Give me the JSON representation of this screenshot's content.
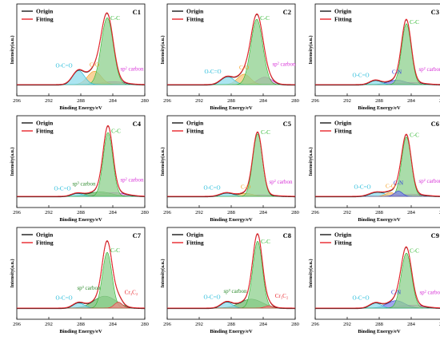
{
  "figure": {
    "xlabel": "Binding Energy/eV",
    "ylabel": "Intensity(a.u.)",
    "legend": {
      "origin": "Origin",
      "fitting": "Fitting",
      "origin_color": "#1a1a1a",
      "fitting_color": "#e8252b"
    },
    "x_ticks": [
      "296",
      "292",
      "288",
      "284",
      "280"
    ]
  },
  "chart_data": [
    {
      "type": "line",
      "id": "C1",
      "label": "C1",
      "xlim": [
        296,
        280
      ],
      "xlabel": "Binding Energy/eV",
      "ylabel": "Intensity(a.u.)",
      "components": [
        {
          "name": "C-C",
          "label": "C-C",
          "center": 284.7,
          "width": 0.75,
          "height": 0.9,
          "color": "#2bb52b",
          "fill": "#8ed08e"
        },
        {
          "name": "C-O",
          "label": "C-O",
          "center": 286.3,
          "width": 0.85,
          "height": 0.18,
          "color": "#f39c1f",
          "fill": "#f7c47a"
        },
        {
          "name": "O-C=O",
          "label": "O-C=O",
          "center": 288.3,
          "width": 0.75,
          "height": 0.19,
          "color": "#1bb8d8",
          "fill": "#8fdcec"
        },
        {
          "name": "sp2 carbon",
          "label": "sp² carbon",
          "center": 284.0,
          "width": 1.5,
          "height": 0.04,
          "color": "#d62fd6",
          "fill": "#e48ee4"
        }
      ]
    },
    {
      "type": "line",
      "id": "C2",
      "label": "C2",
      "xlim": [
        296,
        280
      ],
      "xlabel": "Binding Energy/eV",
      "ylabel": "Intensity(a.u.)",
      "components": [
        {
          "name": "C-C",
          "label": "C-C",
          "center": 284.8,
          "width": 0.75,
          "height": 0.88,
          "color": "#2bb52b",
          "fill": "#8ed08e"
        },
        {
          "name": "C-O",
          "label": "C-O",
          "center": 286.4,
          "width": 0.8,
          "height": 0.14,
          "color": "#f39c1f",
          "fill": "#f7c47a"
        },
        {
          "name": "O-C=O",
          "label": "O-C=O",
          "center": 288.5,
          "width": 0.8,
          "height": 0.11,
          "color": "#1bb8d8",
          "fill": "#8fdcec"
        },
        {
          "name": "sp2 carbon",
          "label": "sp² carbon",
          "center": 283.8,
          "width": 0.9,
          "height": 0.1,
          "color": "#d62fd6",
          "fill": "#e48ee4"
        }
      ]
    },
    {
      "type": "line",
      "id": "C3",
      "label": "C3",
      "xlim": [
        296,
        280
      ],
      "xlabel": "Binding Energy/eV",
      "ylabel": "Intensity(a.u.)",
      "components": [
        {
          "name": "C-C",
          "label": "C-C",
          "center": 284.6,
          "width": 0.6,
          "height": 0.82,
          "color": "#2bb52b",
          "fill": "#8ed08e"
        },
        {
          "name": "C-N",
          "label": "C-N",
          "center": 285.8,
          "width": 1.1,
          "height": 0.06,
          "color": "#2a35d8",
          "fill": "#7f86e8"
        },
        {
          "name": "O-C=O",
          "label": "O-C=O",
          "center": 288.5,
          "width": 0.7,
          "height": 0.06,
          "color": "#1bb8d8",
          "fill": "#8fdcec"
        },
        {
          "name": "sp2 carbon",
          "label": "sp² carbon",
          "center": 284.0,
          "width": 1.5,
          "height": 0.03,
          "color": "#d62fd6",
          "fill": "#e48ee4"
        }
      ]
    },
    {
      "type": "line",
      "id": "C4",
      "label": "C4",
      "xlim": [
        296,
        280
      ],
      "xlabel": "Binding Energy/eV",
      "ylabel": "Intensity(a.u.)",
      "components": [
        {
          "name": "C-C",
          "label": "C-C",
          "center": 284.6,
          "width": 0.6,
          "height": 0.86,
          "color": "#2bb52b",
          "fill": "#8ed08e"
        },
        {
          "name": "sp3 carbon",
          "label": "sp³ carbon",
          "center": 285.6,
          "width": 1.4,
          "height": 0.06,
          "color": "#2b8a2b",
          "fill": "#6fb86f"
        },
        {
          "name": "O-C=O",
          "label": "O-C=O",
          "center": 288.5,
          "width": 0.7,
          "height": 0.04,
          "color": "#1bb8d8",
          "fill": "#8fdcec"
        },
        {
          "name": "sp2 carbon",
          "label": "sp² carbon",
          "center": 284.0,
          "width": 1.6,
          "height": 0.05,
          "color": "#d62fd6",
          "fill": "#e48ee4"
        }
      ]
    },
    {
      "type": "line",
      "id": "C5",
      "label": "C5",
      "xlim": [
        296,
        280
      ],
      "xlabel": "Binding Energy/eV",
      "ylabel": "Intensity(a.u.)",
      "components": [
        {
          "name": "C-C",
          "label": "C-C",
          "center": 284.7,
          "width": 0.6,
          "height": 0.84,
          "color": "#2bb52b",
          "fill": "#8ed08e"
        },
        {
          "name": "C-O",
          "label": "C-O",
          "center": 286.2,
          "width": 0.9,
          "height": 0.04,
          "color": "#f39c1f",
          "fill": "#f7c47a"
        },
        {
          "name": "O-C=O",
          "label": "O-C=O",
          "center": 288.6,
          "width": 0.8,
          "height": 0.05,
          "color": "#1bb8d8",
          "fill": "#8fdcec"
        },
        {
          "name": "sp2 carbon",
          "label": "sp² carbon",
          "center": 284.2,
          "width": 1.6,
          "height": 0.02,
          "color": "#d62fd6",
          "fill": "#e48ee4"
        }
      ]
    },
    {
      "type": "line",
      "id": "C6",
      "label": "C6",
      "xlim": [
        296,
        280
      ],
      "xlabel": "Binding Energy/eV",
      "ylabel": "Intensity(a.u.)",
      "components": [
        {
          "name": "C-C",
          "label": "C-C",
          "center": 284.6,
          "width": 0.6,
          "height": 0.8,
          "color": "#2bb52b",
          "fill": "#8ed08e"
        },
        {
          "name": "C-N",
          "label": "C-N",
          "center": 285.6,
          "width": 0.5,
          "height": 0.07,
          "color": "#2a35d8",
          "fill": "#7f86e8"
        },
        {
          "name": "C-O",
          "label": "C-O",
          "center": 286.6,
          "width": 0.6,
          "height": 0.05,
          "color": "#f39c1f",
          "fill": "#f7c47a"
        },
        {
          "name": "O-C=O",
          "label": "O-C=O",
          "center": 288.3,
          "width": 0.9,
          "height": 0.06,
          "color": "#1bb8d8",
          "fill": "#8fdcec"
        },
        {
          "name": "sp2 carbon",
          "label": "sp² carbon",
          "center": 284.0,
          "width": 1.6,
          "height": 0.03,
          "color": "#d62fd6",
          "fill": "#e48ee4"
        }
      ]
    },
    {
      "type": "line",
      "id": "C7",
      "label": "C7",
      "xlim": [
        296,
        280
      ],
      "xlabel": "Binding Energy/eV",
      "ylabel": "Intensity(a.u.)",
      "components": [
        {
          "name": "C-C",
          "label": "C-C",
          "center": 284.7,
          "width": 0.6,
          "height": 0.75,
          "color": "#2bb52b",
          "fill": "#8ed08e"
        },
        {
          "name": "sp3 carbon",
          "label": "sp³ carbon",
          "center": 285.0,
          "width": 1.4,
          "height": 0.16,
          "color": "#2b8a2b",
          "fill": "#6fb86f"
        },
        {
          "name": "Cr3C2",
          "label": "Cr₃C₂",
          "center": 283.3,
          "width": 0.5,
          "height": 0.08,
          "color": "#e8252b",
          "fill": "#f08a8a"
        },
        {
          "name": "O-C=O",
          "label": "O-C=O",
          "center": 288.3,
          "width": 0.7,
          "height": 0.07,
          "color": "#1bb8d8",
          "fill": "#8fdcec"
        }
      ]
    },
    {
      "type": "line",
      "id": "C8",
      "label": "C8",
      "xlim": [
        296,
        280
      ],
      "xlabel": "Binding Energy/eV",
      "ylabel": "Intensity(a.u.)",
      "components": [
        {
          "name": "C-C",
          "label": "C-C",
          "center": 284.7,
          "width": 0.6,
          "height": 0.9,
          "color": "#2bb52b",
          "fill": "#8ed08e"
        },
        {
          "name": "sp3 carbon",
          "label": "sp³ carbon",
          "center": 285.5,
          "width": 1.4,
          "height": 0.12,
          "color": "#2b8a2b",
          "fill": "#6fb86f"
        },
        {
          "name": "Cr3C2",
          "label": "Cr₃C₂",
          "center": 283.3,
          "width": 0.5,
          "height": 0.03,
          "color": "#e8252b",
          "fill": "#f08a8a"
        },
        {
          "name": "O-C=O",
          "label": "O-C=O",
          "center": 288.6,
          "width": 0.7,
          "height": 0.08,
          "color": "#1bb8d8",
          "fill": "#8fdcec"
        }
      ]
    },
    {
      "type": "line",
      "id": "C9",
      "label": "C9",
      "xlim": [
        296,
        280
      ],
      "xlabel": "Binding Energy/eV",
      "ylabel": "Intensity(a.u.)",
      "components": [
        {
          "name": "C-C",
          "label": "C-C",
          "center": 284.6,
          "width": 0.65,
          "height": 0.74,
          "color": "#2bb52b",
          "fill": "#8ed08e"
        },
        {
          "name": "C-N",
          "label": "C-N",
          "center": 285.9,
          "width": 1.1,
          "height": 0.1,
          "color": "#2a35d8",
          "fill": "#7f86e8"
        },
        {
          "name": "O-C=O",
          "label": "O-C=O",
          "center": 288.5,
          "width": 0.7,
          "height": 0.07,
          "color": "#1bb8d8",
          "fill": "#8fdcec"
        },
        {
          "name": "sp2 carbon",
          "label": "sp² carbon",
          "center": 283.9,
          "width": 1.5,
          "height": 0.04,
          "color": "#d62fd6",
          "fill": "#e48ee4"
        }
      ]
    }
  ]
}
